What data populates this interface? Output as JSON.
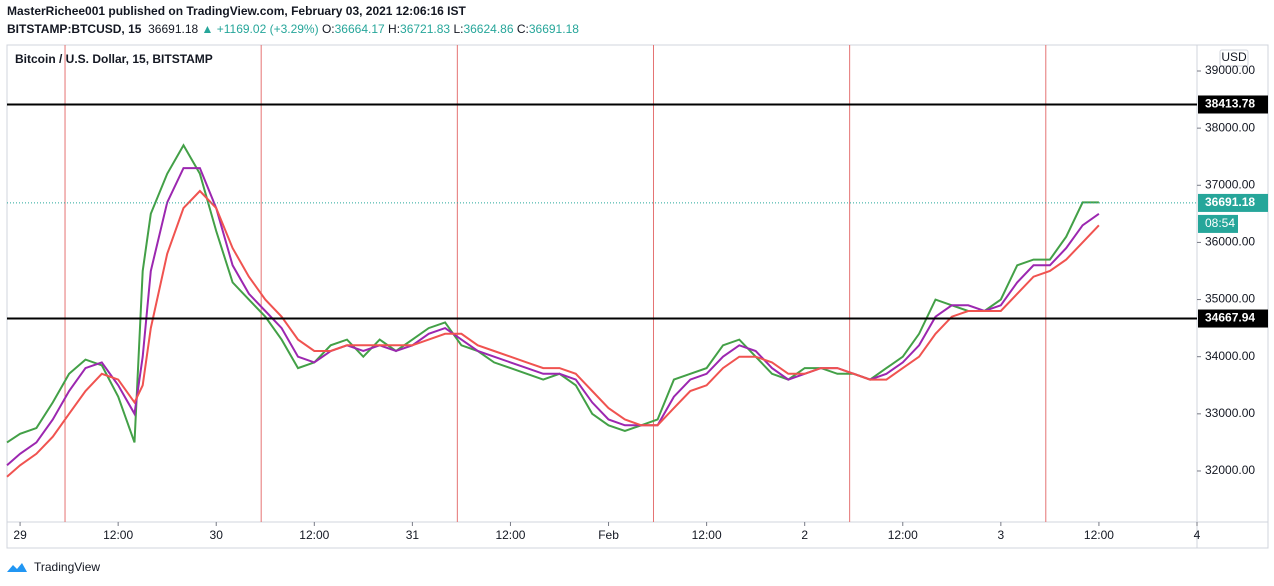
{
  "header": {
    "published": "MasterRichee001 published on TradingView.com, February 03, 2021 12:06:16 IST",
    "symbol": "BITSTAMP:BTCUSD, 15",
    "price": "36691.18",
    "change": "▲ +1169.02 (+3.29%)",
    "ohlc": [
      {
        "label": "O:",
        "value": "36664.17"
      },
      {
        "label": "H:",
        "value": "36721.83"
      },
      {
        "label": "L:",
        "value": "36624.86"
      },
      {
        "label": "C:",
        "value": "36691.18"
      }
    ]
  },
  "footer": {
    "brand": "TradingView"
  },
  "chart_data": {
    "type": "line",
    "title": "Bitcoin / U.S. Dollar, 15, BITSTAMP",
    "currency": "USD",
    "x": [
      -1.6,
      0,
      2,
      4,
      6,
      8,
      10,
      12,
      14,
      15,
      16,
      18,
      20,
      22,
      24,
      26,
      28,
      30,
      32,
      34,
      36,
      38,
      40,
      42,
      44,
      46,
      48,
      50,
      52,
      54,
      56,
      58,
      60,
      62,
      64,
      66,
      68,
      70,
      72,
      74,
      76,
      78,
      80,
      82,
      84,
      86,
      88,
      90,
      92,
      94,
      96,
      98,
      100,
      102,
      104,
      106,
      108,
      110,
      112,
      114,
      116,
      118,
      120,
      122,
      124,
      126,
      128,
      130,
      132
    ],
    "series": [
      {
        "color": "#43a047",
        "values": [
          32500,
          32650,
          32750,
          33200,
          33700,
          33950,
          33850,
          33300,
          32500,
          35500,
          36500,
          37200,
          37700,
          37200,
          36200,
          35300,
          35000,
          34700,
          34300,
          33800,
          33900,
          34200,
          34300,
          34000,
          34300,
          34100,
          34300,
          34500,
          34600,
          34200,
          34100,
          33900,
          33800,
          33700,
          33600,
          33700,
          33500,
          33000,
          32800,
          32700,
          32800,
          32900,
          33600,
          33700,
          33800,
          34200,
          34300,
          34000,
          33700,
          33600,
          33800,
          33800,
          33700,
          33700,
          33600,
          33800,
          34000,
          34400,
          35000,
          34900,
          34800,
          34800,
          35000,
          35600,
          35700,
          35700,
          36100,
          36700,
          36700
        ]
      },
      {
        "color": "#9c27b0",
        "values": [
          32100,
          32300,
          32500,
          32900,
          33400,
          33800,
          33900,
          33500,
          33000,
          34000,
          35500,
          36700,
          37300,
          37300,
          36600,
          35600,
          35100,
          34800,
          34500,
          34000,
          33900,
          34100,
          34200,
          34100,
          34200,
          34100,
          34200,
          34400,
          34500,
          34300,
          34100,
          34000,
          33900,
          33800,
          33700,
          33700,
          33600,
          33200,
          32900,
          32800,
          32800,
          32800,
          33300,
          33600,
          33700,
          34000,
          34200,
          34100,
          33800,
          33600,
          33700,
          33800,
          33800,
          33700,
          33600,
          33700,
          33900,
          34200,
          34700,
          34900,
          34900,
          34800,
          34900,
          35300,
          35600,
          35600,
          35900,
          36300,
          36500
        ]
      },
      {
        "color": "#f05350",
        "values": [
          31900,
          32100,
          32300,
          32600,
          33000,
          33400,
          33700,
          33600,
          33200,
          33500,
          34500,
          35800,
          36600,
          36900,
          36600,
          35900,
          35400,
          35000,
          34700,
          34300,
          34100,
          34100,
          34200,
          34200,
          34200,
          34200,
          34200,
          34300,
          34400,
          34400,
          34200,
          34100,
          34000,
          33900,
          33800,
          33800,
          33700,
          33400,
          33100,
          32900,
          32800,
          32800,
          33100,
          33400,
          33500,
          33800,
          34000,
          34000,
          33900,
          33700,
          33700,
          33800,
          33800,
          33700,
          33600,
          33600,
          33800,
          34000,
          34400,
          34700,
          34800,
          34800,
          34800,
          35100,
          35400,
          35500,
          35700,
          36000,
          36300
        ]
      }
    ],
    "levels": [
      38413.78,
      34667.94
    ],
    "level_color": "#000000",
    "last_price": 36691.18,
    "last_price_color": "#26a69a",
    "countdown": "08:54",
    "session_breaks": [
      5.5,
      29.5,
      53.5,
      77.5,
      101.5,
      125.5
    ],
    "session_break_color": "#e57373",
    "xlim": [
      -1.6,
      144
    ],
    "xticks": [
      {
        "value": 0,
        "label": "29"
      },
      {
        "value": 12,
        "label": "12:00"
      },
      {
        "value": 24,
        "label": "30"
      },
      {
        "value": 36,
        "label": "12:00"
      },
      {
        "value": 48,
        "label": "31"
      },
      {
        "value": 60,
        "label": "12:00"
      },
      {
        "value": 72,
        "label": "Feb"
      },
      {
        "value": 84,
        "label": "12:00"
      },
      {
        "value": 96,
        "label": "2"
      },
      {
        "value": 108,
        "label": "12:00"
      },
      {
        "value": 120,
        "label": "3"
      },
      {
        "value": 132,
        "label": "12:00"
      },
      {
        "value": 144,
        "label": "4"
      }
    ],
    "ylim": [
      31142,
      39455
    ],
    "yticks": [
      {
        "value": 32000,
        "label": "32000.00"
      },
      {
        "value": 33000,
        "label": "33000.00"
      },
      {
        "value": 34000,
        "label": "34000.00"
      },
      {
        "value": 35000,
        "label": "35000.00"
      },
      {
        "value": 36000,
        "label": "36000.00"
      },
      {
        "value": 37000,
        "label": "37000.00"
      },
      {
        "value": 38000,
        "label": "38000.00"
      },
      {
        "value": 39000,
        "label": "39000.00"
      }
    ],
    "grid": false
  }
}
